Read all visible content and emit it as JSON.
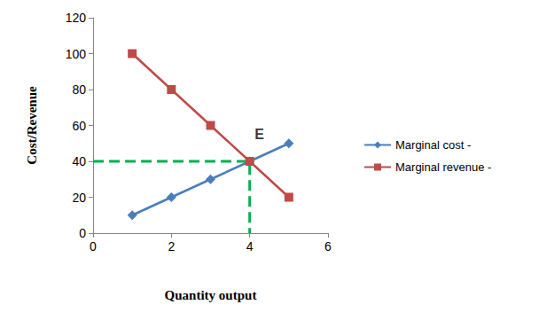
{
  "chart_data": {
    "type": "line",
    "x_label": "Quantity output",
    "y_label": "Cost/Revenue",
    "x": [
      1,
      2,
      3,
      4,
      5
    ],
    "xlim": [
      0,
      6
    ],
    "xticks": [
      0,
      2,
      4,
      6
    ],
    "ylim": [
      0,
      120
    ],
    "yticks": [
      0,
      20,
      40,
      60,
      80,
      100,
      120
    ],
    "grid": false,
    "legend": "right",
    "series": [
      {
        "type": "line",
        "x": [
          0,
          4,
          4
        ],
        "values": [
          40,
          40,
          0
        ],
        "color": "#00b050",
        "marker": "none",
        "line_style": "dashed"
      },
      {
        "name": "Marginal cost -",
        "color": "#4a7ebb",
        "marker": "diamond",
        "line_style": "solid",
        "values": [
          10,
          20,
          30,
          40,
          50
        ]
      },
      {
        "name": "Marginal revenue -",
        "color": "#be4b48",
        "marker": "square",
        "line_style": "solid",
        "values": [
          100,
          80,
          60,
          40,
          20
        ]
      }
    ],
    "annotations": [
      {
        "text": "E",
        "x": 4,
        "y": 40
      }
    ]
  }
}
